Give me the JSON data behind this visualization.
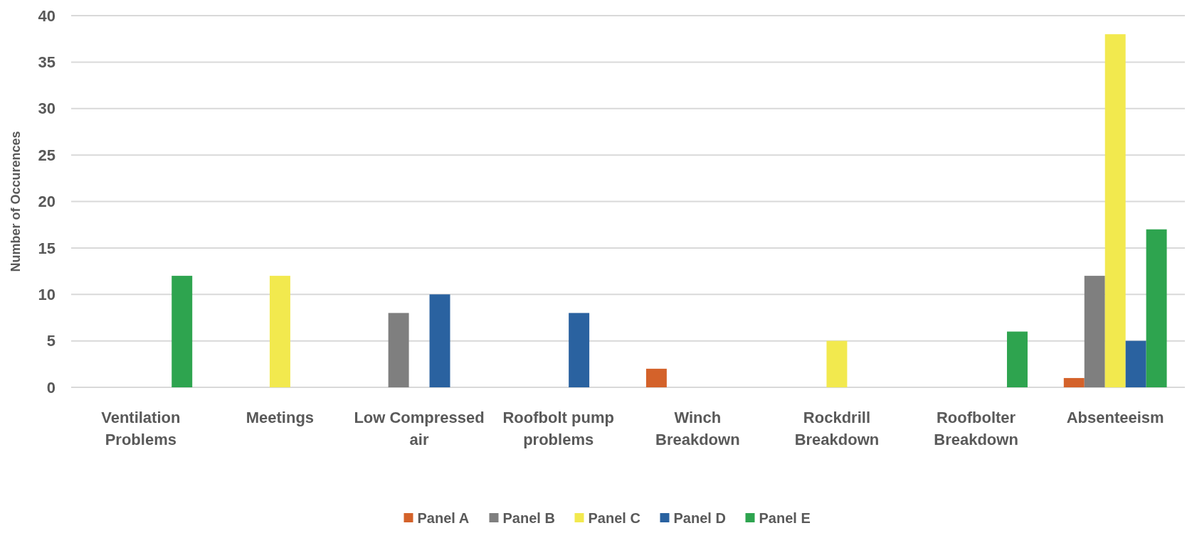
{
  "chart_data": {
    "type": "bar",
    "ylabel": "Number of Occurences",
    "categories": [
      "Ventilation Problems",
      "Meetings",
      "Low Compressed air",
      "Roofbolt pump problems",
      "Winch Breakdown",
      "Rockdrill Breakdown",
      "Roofbolter Breakdown",
      "Absenteeism"
    ],
    "series": [
      {
        "name": "Panel A",
        "color": "#d4622a",
        "values": [
          0,
          0,
          0,
          0,
          2,
          0,
          0,
          1
        ]
      },
      {
        "name": "Panel B",
        "color": "#7f7f7f",
        "values": [
          0,
          0,
          8,
          0,
          0,
          0,
          0,
          12
        ]
      },
      {
        "name": "Panel C",
        "color": "#f2e94e",
        "values": [
          0,
          12,
          0,
          0,
          0,
          5,
          0,
          38
        ]
      },
      {
        "name": "Panel D",
        "color": "#2a62a0",
        "values": [
          0,
          0,
          10,
          8,
          0,
          0,
          0,
          5
        ]
      },
      {
        "name": "Panel E",
        "color": "#2ea44f",
        "values": [
          12,
          0,
          0,
          0,
          0,
          0,
          6,
          17
        ]
      }
    ],
    "ylim": [
      0,
      40
    ],
    "yticks": [
      0,
      5,
      10,
      15,
      20,
      25,
      30,
      35,
      40
    ],
    "grid": "y",
    "legend": "bottom"
  }
}
